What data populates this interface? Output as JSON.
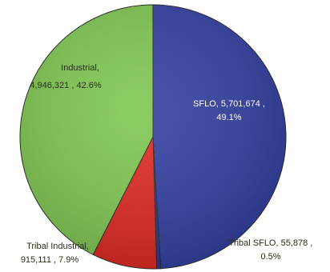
{
  "chart_data": {
    "type": "pie",
    "slices": [
      {
        "label": "SFLO",
        "value": 5701674,
        "value_text": "5,701,674",
        "percent_text": "49.1%",
        "color": "#3340a2"
      },
      {
        "label": "Tribal SFLO",
        "value": 55878,
        "value_text": "55,878",
        "percent_text": "0.5%",
        "color": "#2a3a8f"
      },
      {
        "label": "Tribal Industrial",
        "value": 915111,
        "value_text": "915,111",
        "percent_text": "7.9%",
        "color": "#df2a22"
      },
      {
        "label": "Industrial",
        "value": 4946321,
        "value_text": "4,946,321",
        "percent_text": "42.6%",
        "color": "#80c852"
      }
    ],
    "data_labels": [
      {
        "line1": "SFLO, 5,701,674 ,",
        "line2": "49.1%"
      },
      {
        "line1": "Tribal SFLO, 55,878 ,",
        "line2": "0.5%"
      },
      {
        "line1": "Tribal Industrial,",
        "line2": "915,111 , 7.9%"
      },
      {
        "line1": "Industrial,",
        "line2": "4,946,321 , 42.6%"
      }
    ]
  }
}
